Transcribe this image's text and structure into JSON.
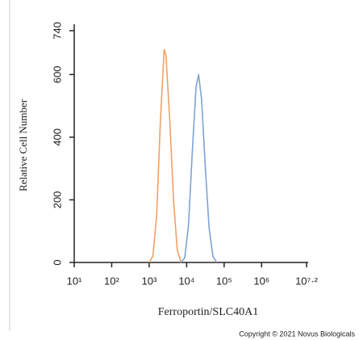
{
  "chart_data": {
    "type": "line",
    "x_label": "Ferroportin/SLC40A1",
    "y_label": "Relative Cell Number",
    "footer": "Copyright © 2021 Novus Biologicals",
    "x_scale": "log",
    "xlim": [
      10,
      15848932
    ],
    "xticks": [
      {
        "value": 10,
        "label": "10¹"
      },
      {
        "value": 100,
        "label": "10²"
      },
      {
        "value": 1000,
        "label": "10³"
      },
      {
        "value": 10000,
        "label": "10⁴"
      },
      {
        "value": 100000,
        "label": "10⁵"
      },
      {
        "value": 1000000,
        "label": "10⁶"
      },
      {
        "value": 15848932,
        "label": "10⁷·²"
      }
    ],
    "ylim": [
      0,
      740
    ],
    "yticks": [
      0,
      200,
      400,
      600,
      740
    ],
    "series": [
      {
        "color": "#f2a064",
        "x": [
          1000,
          1259,
          1585,
          1995,
          2512,
          2818,
          3548,
          4467,
          5623,
          7079
        ],
        "values": [
          0,
          20,
          150,
          450,
          680,
          660,
          450,
          200,
          40,
          0
        ]
      },
      {
        "color": "#7fa2d4",
        "x": [
          7079,
          8913,
          11220,
          14125,
          17783,
          20893,
          25119,
          31623,
          39811,
          50119,
          63096
        ],
        "values": [
          0,
          15,
          120,
          350,
          560,
          600,
          520,
          300,
          110,
          20,
          0
        ]
      }
    ]
  }
}
